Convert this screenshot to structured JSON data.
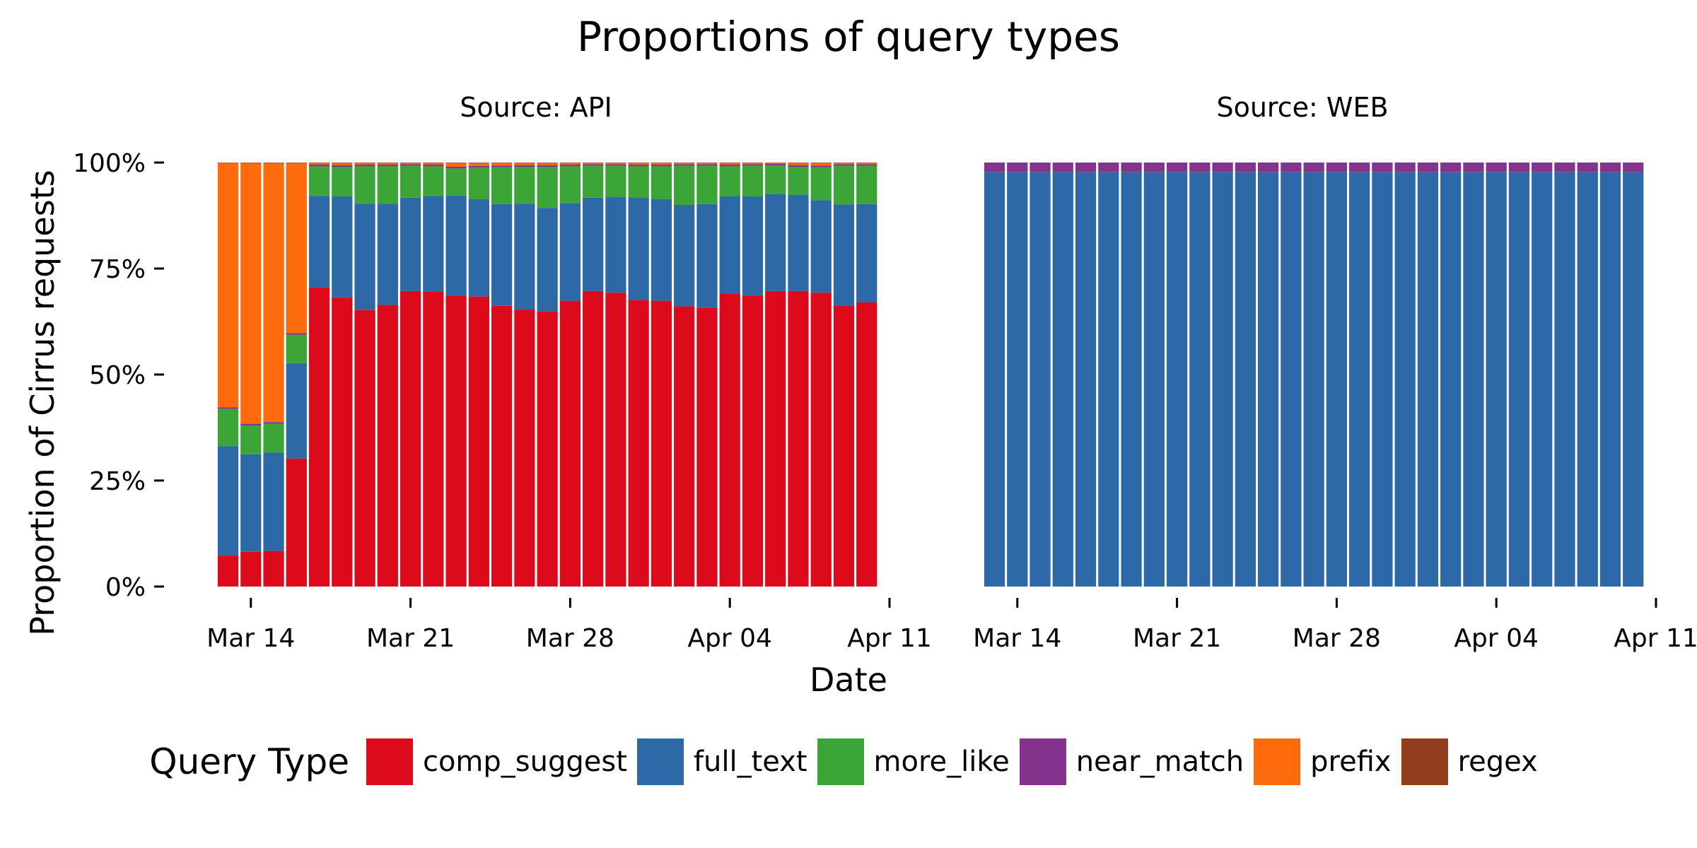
{
  "chart_data": {
    "type": "bar",
    "stacked": true,
    "title": "Proportions of query types",
    "xlabel": "Date",
    "ylabel": "Proportion of Cirrus requests",
    "ylim": [
      0,
      1
    ],
    "y_ticks": [
      "0%",
      "25%",
      "50%",
      "75%",
      "100%"
    ],
    "x_range": [
      "2016-03-11",
      "2016-04-11"
    ],
    "x_ticks": [
      "Mar 14",
      "Mar 21",
      "Mar 28",
      "Apr 04",
      "Apr 11"
    ],
    "grid": false,
    "legend_position": "bottom",
    "legend_title": "Query Type",
    "query_types": [
      "comp_suggest",
      "full_text",
      "more_like",
      "near_match",
      "prefix",
      "regex"
    ],
    "colors": {
      "comp_suggest": "#DB0B1C",
      "full_text": "#2D69A6",
      "more_like": "#3CA538",
      "near_match": "#85348D",
      "prefix": "#FE6A0C",
      "regex": "#903E1E"
    },
    "dates": [
      "2016-03-13",
      "2016-03-14",
      "2016-03-15",
      "2016-03-16",
      "2016-03-17",
      "2016-03-18",
      "2016-03-19",
      "2016-03-20",
      "2016-03-21",
      "2016-03-22",
      "2016-03-23",
      "2016-03-24",
      "2016-03-25",
      "2016-03-26",
      "2016-03-27",
      "2016-03-28",
      "2016-03-29",
      "2016-03-30",
      "2016-03-31",
      "2016-04-01",
      "2016-04-02",
      "2016-04-03",
      "2016-04-04",
      "2016-04-05",
      "2016-04-06",
      "2016-04-07",
      "2016-04-08",
      "2016-04-09",
      "2016-04-10"
    ],
    "panels": [
      {
        "name": "Source: API",
        "series": [
          {
            "name": "comp_suggest",
            "values": [
              0.073,
              0.082,
              0.084,
              0.302,
              0.706,
              0.682,
              0.652,
              0.664,
              0.697,
              0.696,
              0.686,
              0.684,
              0.662,
              0.654,
              0.649,
              0.674,
              0.697,
              0.693,
              0.676,
              0.674,
              0.661,
              0.658,
              0.69,
              0.687,
              0.697,
              0.697,
              0.693,
              0.663,
              0.67
            ]
          },
          {
            "name": "full_text",
            "values": [
              0.258,
              0.23,
              0.232,
              0.225,
              0.215,
              0.238,
              0.251,
              0.239,
              0.22,
              0.225,
              0.236,
              0.23,
              0.24,
              0.249,
              0.244,
              0.23,
              0.22,
              0.226,
              0.242,
              0.24,
              0.239,
              0.244,
              0.23,
              0.233,
              0.228,
              0.227,
              0.218,
              0.238,
              0.232
            ]
          },
          {
            "name": "more_like",
            "values": [
              0.088,
              0.068,
              0.068,
              0.067,
              0.07,
              0.07,
              0.088,
              0.088,
              0.075,
              0.07,
              0.064,
              0.074,
              0.087,
              0.087,
              0.097,
              0.087,
              0.075,
              0.073,
              0.073,
              0.077,
              0.092,
              0.09,
              0.071,
              0.072,
              0.068,
              0.066,
              0.078,
              0.091,
              0.09
            ]
          },
          {
            "name": "near_match",
            "values": [
              0.004,
              0.004,
              0.004,
              0.004,
              0.004,
              0.004,
              0.004,
              0.004,
              0.004,
              0.004,
              0.004,
              0.004,
              0.004,
              0.004,
              0.004,
              0.004,
              0.004,
              0.004,
              0.004,
              0.004,
              0.004,
              0.004,
              0.004,
              0.004,
              0.004,
              0.004,
              0.004,
              0.004,
              0.004
            ]
          },
          {
            "name": "prefix",
            "values": [
              0.576,
              0.615,
              0.611,
              0.401,
              0.004,
              0.005,
              0.004,
              0.004,
              0.003,
              0.004,
              0.009,
              0.007,
              0.006,
              0.005,
              0.005,
              0.004,
              0.003,
              0.003,
              0.004,
              0.004,
              0.003,
              0.003,
              0.004,
              0.003,
              0.002,
              0.005,
              0.006,
              0.003,
              0.003
            ]
          },
          {
            "name": "regex",
            "values": [
              0.001,
              0.001,
              0.001,
              0.001,
              0.001,
              0.001,
              0.001,
              0.001,
              0.001,
              0.001,
              0.001,
              0.001,
              0.001,
              0.001,
              0.001,
              0.001,
              0.001,
              0.001,
              0.001,
              0.001,
              0.001,
              0.001,
              0.001,
              0.001,
              0.001,
              0.001,
              0.001,
              0.001,
              0.001
            ]
          }
        ]
      },
      {
        "name": "Source: WEB",
        "series": [
          {
            "name": "comp_suggest",
            "values": [
              0,
              0,
              0,
              0,
              0,
              0,
              0,
              0,
              0,
              0,
              0,
              0,
              0,
              0,
              0,
              0,
              0,
              0,
              0,
              0,
              0,
              0,
              0,
              0,
              0,
              0,
              0,
              0,
              0
            ]
          },
          {
            "name": "full_text",
            "values": [
              0.977,
              0.977,
              0.977,
              0.977,
              0.977,
              0.977,
              0.977,
              0.977,
              0.977,
              0.977,
              0.977,
              0.977,
              0.977,
              0.977,
              0.977,
              0.977,
              0.977,
              0.977,
              0.977,
              0.977,
              0.977,
              0.977,
              0.977,
              0.977,
              0.977,
              0.977,
              0.977,
              0.977,
              0.977
            ]
          },
          {
            "name": "more_like",
            "values": [
              0,
              0,
              0,
              0,
              0,
              0,
              0,
              0,
              0,
              0,
              0,
              0,
              0,
              0,
              0,
              0,
              0,
              0,
              0,
              0,
              0,
              0,
              0,
              0,
              0,
              0,
              0,
              0,
              0
            ]
          },
          {
            "name": "near_match",
            "values": [
              0.023,
              0.023,
              0.023,
              0.023,
              0.023,
              0.023,
              0.023,
              0.023,
              0.023,
              0.023,
              0.023,
              0.023,
              0.023,
              0.023,
              0.023,
              0.023,
              0.023,
              0.023,
              0.023,
              0.023,
              0.023,
              0.023,
              0.023,
              0.023,
              0.023,
              0.023,
              0.023,
              0.023,
              0.023
            ]
          },
          {
            "name": "prefix",
            "values": [
              0,
              0,
              0,
              0,
              0,
              0,
              0,
              0,
              0,
              0,
              0,
              0,
              0,
              0,
              0,
              0,
              0,
              0,
              0,
              0,
              0,
              0,
              0,
              0,
              0,
              0,
              0,
              0,
              0
            ]
          },
          {
            "name": "regex",
            "values": [
              0,
              0,
              0,
              0,
              0,
              0,
              0,
              0,
              0,
              0,
              0,
              0,
              0,
              0,
              0,
              0,
              0,
              0,
              0,
              0,
              0,
              0,
              0,
              0,
              0,
              0,
              0,
              0,
              0
            ]
          }
        ]
      }
    ]
  }
}
